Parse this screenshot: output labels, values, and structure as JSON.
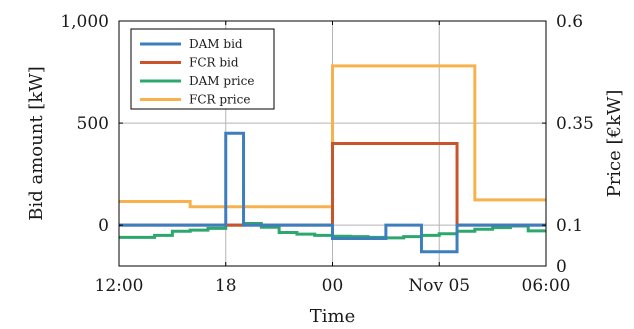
{
  "chart_data": {
    "type": "line",
    "xlabel": "Time",
    "ylabel": "Bid amount [kW]",
    "y2label": "Price [€kW]",
    "grid": true,
    "legend_placement": "top-left",
    "x_ticks": [
      {
        "hour": 0,
        "label": "12:00"
      },
      {
        "hour": 6,
        "label": "18"
      },
      {
        "hour": 12,
        "label": "00"
      },
      {
        "hour": 18,
        "label": "Nov 05"
      },
      {
        "hour": 24,
        "label": "06:00"
      }
    ],
    "xlim": [
      0,
      24
    ],
    "ylim": [
      -200,
      1000
    ],
    "y_ticks": [
      {
        "value": 0,
        "label": "0"
      },
      {
        "value": 500,
        "label": "500"
      },
      {
        "value": 1000,
        "label": "1,000"
      }
    ],
    "y2lim": [
      0.0,
      0.6
    ],
    "y2_ticks": [
      {
        "value": 0.0,
        "label": "0"
      },
      {
        "value": 0.1,
        "label": "0.1"
      },
      {
        "value": 0.35,
        "label": "0.35"
      },
      {
        "value": 0.6,
        "label": "0.6"
      }
    ],
    "series": [
      {
        "name": "DAM bid",
        "axis": "left",
        "color": "#3d7ebf",
        "step": true,
        "x": [
          0,
          5,
          6,
          7,
          11,
          12,
          15,
          17,
          19,
          24
        ],
        "y": [
          0,
          0,
          450,
          0,
          0,
          -65,
          0,
          -130,
          0,
          0
        ]
      },
      {
        "name": "FCR bid",
        "axis": "left",
        "color": "#c9532b",
        "step": true,
        "x": [
          0,
          12,
          19,
          24
        ],
        "y": [
          0,
          400,
          0,
          0
        ]
      },
      {
        "name": "DAM price",
        "axis": "right",
        "color": "#2da86d",
        "step": true,
        "x": [
          0,
          1,
          2,
          3,
          4,
          5,
          6,
          7,
          8,
          9,
          10,
          11,
          12,
          13,
          14,
          15,
          16,
          17,
          18,
          19,
          20,
          21,
          22,
          23,
          24
        ],
        "y": [
          0.07,
          0.07,
          0.075,
          0.085,
          0.088,
          0.092,
          0.1,
          0.104,
          0.095,
          0.082,
          0.078,
          0.075,
          0.073,
          0.072,
          0.07,
          0.069,
          0.072,
          0.075,
          0.079,
          0.085,
          0.09,
          0.094,
          0.098,
          0.086,
          0.086
        ]
      },
      {
        "name": "FCR price",
        "axis": "right",
        "color": "#f7b24d",
        "step": true,
        "x": [
          0,
          4,
          8,
          12,
          16,
          20,
          24
        ],
        "y": [
          0.158,
          0.145,
          0.145,
          0.49,
          0.49,
          0.162,
          0.162
        ]
      }
    ]
  }
}
